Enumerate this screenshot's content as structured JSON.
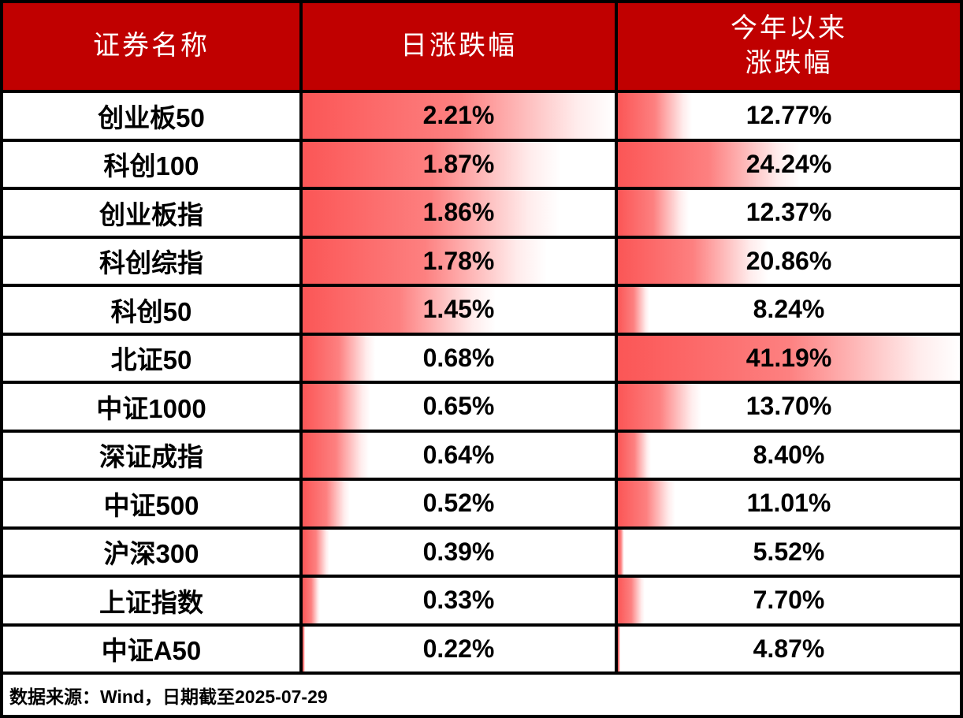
{
  "table": {
    "columns": [
      {
        "label": "证券名称"
      },
      {
        "label": "日涨跌幅"
      },
      {
        "label": "今年以来\n涨跌幅"
      }
    ],
    "rows": [
      {
        "name": "创业板50",
        "daily": "2.21%",
        "daily_value": 2.21,
        "ytd": "12.77%",
        "ytd_value": 12.77
      },
      {
        "name": "科创100",
        "daily": "1.87%",
        "daily_value": 1.87,
        "ytd": "24.24%",
        "ytd_value": 24.24
      },
      {
        "name": "创业板指",
        "daily": "1.86%",
        "daily_value": 1.86,
        "ytd": "12.37%",
        "ytd_value": 12.37
      },
      {
        "name": "科创综指",
        "daily": "1.78%",
        "daily_value": 1.78,
        "ytd": "20.86%",
        "ytd_value": 20.86
      },
      {
        "name": "科创50",
        "daily": "1.45%",
        "daily_value": 1.45,
        "ytd": "8.24%",
        "ytd_value": 8.24
      },
      {
        "name": "北证50",
        "daily": "0.68%",
        "daily_value": 0.68,
        "ytd": "41.19%",
        "ytd_value": 41.19
      },
      {
        "name": "中证1000",
        "daily": "0.65%",
        "daily_value": 0.65,
        "ytd": "13.70%",
        "ytd_value": 13.7
      },
      {
        "name": "深证成指",
        "daily": "0.64%",
        "daily_value": 0.64,
        "ytd": "8.40%",
        "ytd_value": 8.4
      },
      {
        "name": "中证500",
        "daily": "0.52%",
        "daily_value": 0.52,
        "ytd": "11.01%",
        "ytd_value": 11.01
      },
      {
        "name": "沪深300",
        "daily": "0.39%",
        "daily_value": 0.39,
        "ytd": "5.52%",
        "ytd_value": 5.52
      },
      {
        "name": "上证指数",
        "daily": "0.33%",
        "daily_value": 0.33,
        "ytd": "7.70%",
        "ytd_value": 7.7
      },
      {
        "name": "中证A50",
        "daily": "0.22%",
        "daily_value": 0.22,
        "ytd": "4.87%",
        "ytd_value": 4.87
      }
    ],
    "footer_note": "数据来源：Wind，日期截至2025-07-29"
  },
  "colors": {
    "header_bg": "#c00000",
    "header_text": "#ffffff",
    "bar_red": "#fb5656",
    "border": "#000000",
    "cell_bg": "#ffffff",
    "value_text": "#000000"
  },
  "chart_data": {
    "type": "table",
    "columns": [
      "证券名称",
      "日涨跌幅",
      "今年以来涨跌幅"
    ],
    "rows": [
      [
        "创业板50",
        "2.21%",
        "12.77%"
      ],
      [
        "科创100",
        "1.87%",
        "24.24%"
      ],
      [
        "创业板指",
        "1.86%",
        "12.37%"
      ],
      [
        "科创综指",
        "1.78%",
        "20.86%"
      ],
      [
        "科创50",
        "1.45%",
        "8.24%"
      ],
      [
        "北证50",
        "0.68%",
        "41.19%"
      ],
      [
        "中证1000",
        "0.65%",
        "13.70%"
      ],
      [
        "深证成指",
        "0.64%",
        "8.40%"
      ],
      [
        "中证500",
        "0.52%",
        "11.01%"
      ],
      [
        "沪深300",
        "0.39%",
        "5.52%"
      ],
      [
        "上证指数",
        "0.33%",
        "7.70%"
      ],
      [
        "中证A50",
        "0.22%",
        "4.87%"
      ]
    ],
    "series": [
      {
        "name": "日涨跌幅",
        "values": [
          2.21,
          1.87,
          1.86,
          1.78,
          1.45,
          0.68,
          0.65,
          0.64,
          0.52,
          0.39,
          0.33,
          0.22
        ],
        "databar_range": [
          0.22,
          2.21
        ]
      },
      {
        "name": "今年以来涨跌幅",
        "values": [
          12.77,
          24.24,
          12.37,
          20.86,
          8.24,
          41.19,
          13.7,
          8.4,
          11.01,
          5.52,
          7.7,
          4.87
        ],
        "databar_range": [
          4.87,
          41.19
        ]
      }
    ],
    "title": "",
    "legend_position": "none",
    "grid": "black-borders",
    "annotations": [
      "数据来源：Wind，日期截至2025-07-29"
    ]
  }
}
